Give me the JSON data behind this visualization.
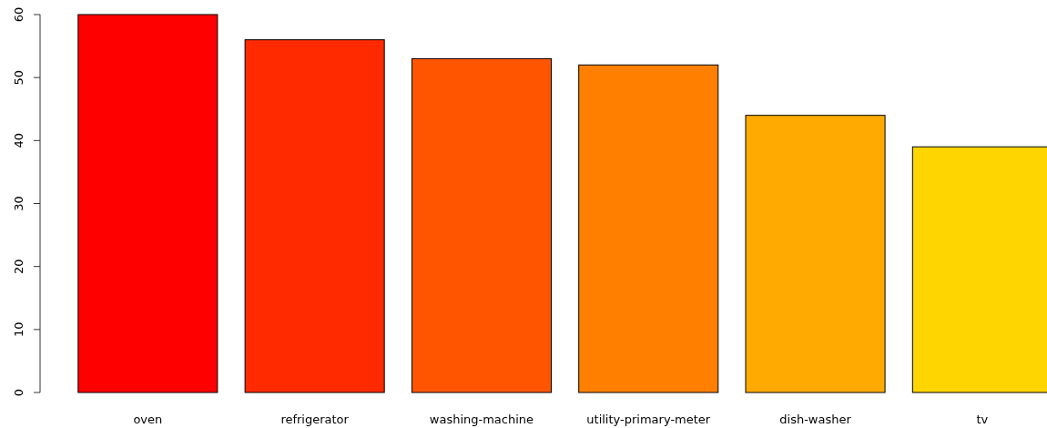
{
  "chart_data": {
    "type": "bar",
    "categories": [
      "oven",
      "refrigerator",
      "washing-machine",
      "utility-primary-meter",
      "dish-washer",
      "tv"
    ],
    "values": [
      60,
      56,
      53,
      52,
      44,
      39
    ],
    "colors": [
      "#ff0000",
      "#ff2a00",
      "#ff5500",
      "#ff8000",
      "#ffaa00",
      "#ffd500"
    ],
    "ylim": [
      0,
      60
    ],
    "yticks": [
      0,
      10,
      20,
      30,
      40,
      50,
      60
    ],
    "grid": false
  }
}
